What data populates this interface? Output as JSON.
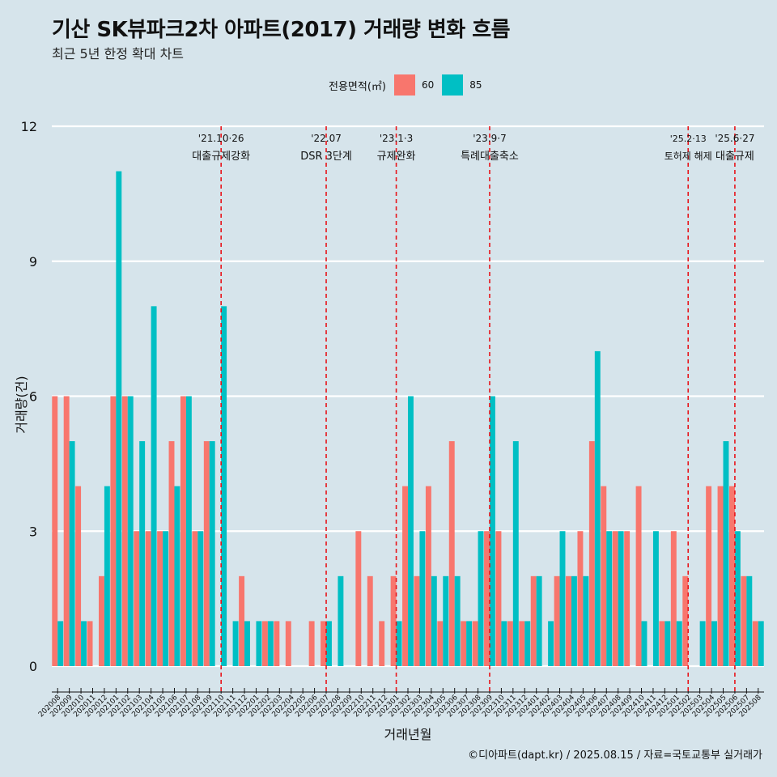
{
  "header": {
    "title": "기산 SK뷰파크2차 아파트(2017) 거래량 변화 흐름",
    "subtitle": "최근 5년 한정 확대 차트"
  },
  "legend": {
    "title": "전용면적(㎡)",
    "items": [
      {
        "label": "60",
        "color": "#f8766d"
      },
      {
        "label": "85",
        "color": "#00bfc4"
      }
    ]
  },
  "caption": "©디아파트(dapt.kr) / 2025.08.15 / 자료=국토교통부 실거래가",
  "chart_data": {
    "type": "bar",
    "title": "기산 SK뷰파크2차 아파트(2017) 거래량 변화 흐름",
    "xlabel": "거래년월",
    "ylabel": "거래량(건)",
    "ylim": [
      0,
      12
    ],
    "yticks": [
      0,
      3,
      6,
      9,
      12
    ],
    "categories": [
      "202008",
      "202009",
      "202010",
      "202011",
      "202012",
      "202101",
      "202102",
      "202103",
      "202104",
      "202105",
      "202106",
      "202107",
      "202108",
      "202109",
      "202110",
      "202111",
      "202112",
      "202201",
      "202202",
      "202203",
      "202204",
      "202205",
      "202206",
      "202207",
      "202208",
      "202209",
      "202210",
      "202211",
      "202212",
      "202301",
      "202302",
      "202303",
      "202304",
      "202305",
      "202306",
      "202307",
      "202308",
      "202309",
      "202310",
      "202311",
      "202312",
      "202401",
      "202402",
      "202403",
      "202404",
      "202405",
      "202406",
      "202407",
      "202408",
      "202409",
      "202410",
      "202411",
      "202412",
      "202501",
      "202502",
      "202503",
      "202504",
      "202505",
      "202506",
      "202507",
      "202508"
    ],
    "series": [
      {
        "name": "60",
        "color": "#f8766d",
        "values": [
          6,
          6,
          4,
          1,
          2,
          6,
          6,
          3,
          3,
          3,
          5,
          6,
          3,
          5,
          0,
          0,
          2,
          0,
          1,
          1,
          1,
          0,
          1,
          1,
          0,
          0,
          3,
          2,
          1,
          2,
          4,
          2,
          4,
          1,
          5,
          1,
          1,
          3,
          3,
          1,
          1,
          2,
          0,
          2,
          2,
          3,
          5,
          4,
          3,
          3,
          4,
          0,
          1,
          3,
          2,
          0,
          4,
          4,
          4,
          2,
          1
        ]
      },
      {
        "name": "85",
        "color": "#00bfc4",
        "values": [
          1,
          5,
          1,
          0,
          4,
          11,
          6,
          5,
          8,
          3,
          4,
          6,
          3,
          5,
          8,
          1,
          1,
          1,
          1,
          0,
          0,
          0,
          0,
          1,
          2,
          0,
          0,
          0,
          0,
          1,
          6,
          3,
          2,
          2,
          2,
          1,
          3,
          6,
          1,
          5,
          1,
          2,
          1,
          3,
          2,
          2,
          7,
          3,
          3,
          0,
          1,
          3,
          1,
          1,
          0,
          1,
          1,
          5,
          3,
          2,
          1
        ]
      }
    ],
    "events": [
      {
        "category": "202110",
        "date": "'21.10·26",
        "label": "대출규제강화"
      },
      {
        "category": "202207",
        "date": "'22.07",
        "label": "DSR 3단계"
      },
      {
        "category": "202301",
        "date": "'23.1·3",
        "label": "규제완화"
      },
      {
        "category": "202309",
        "date": "'23.9·7",
        "label": "특례대출축소"
      },
      {
        "category": "202502",
        "date": "'25.2·13",
        "label": "토허제 해제"
      },
      {
        "category": "202506",
        "date": "'25.6·27",
        "label": "대출규제"
      }
    ]
  }
}
